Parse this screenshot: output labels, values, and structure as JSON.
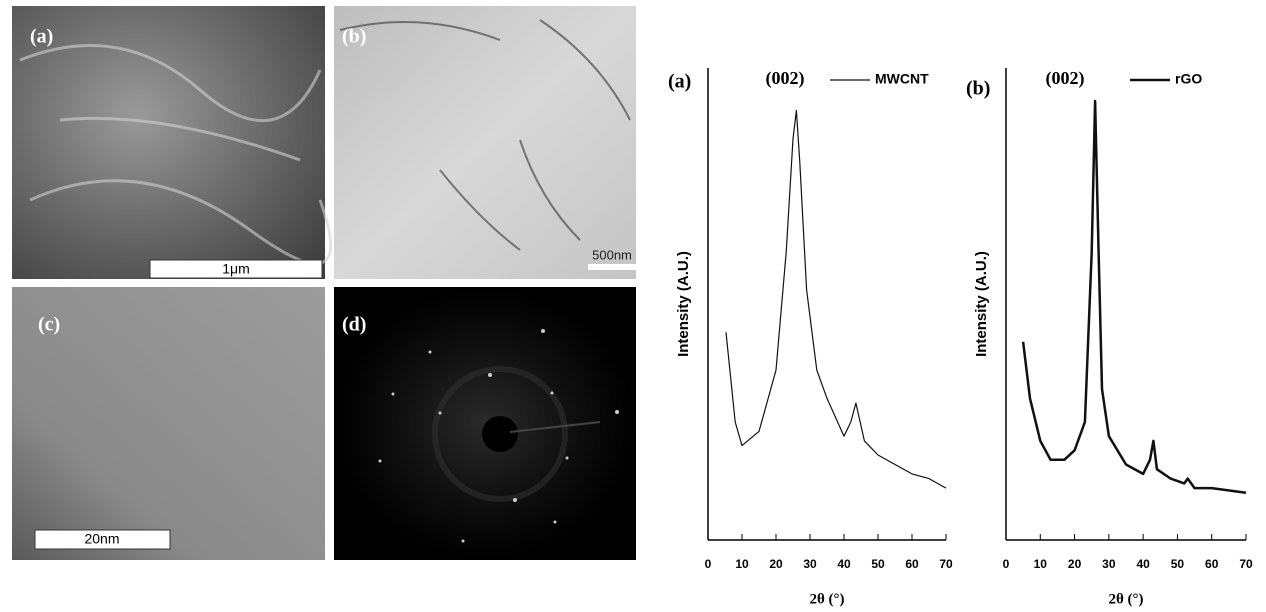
{
  "images": [
    {
      "label": "(a)",
      "scale_bar": "1μm"
    },
    {
      "label": "(b)",
      "scale_bar": "500nm"
    },
    {
      "label": "(c)",
      "scale_bar": "20nm"
    },
    {
      "label": "(d)"
    }
  ],
  "chart_data": [
    {
      "type": "line",
      "panel_label": "(a)",
      "annotation": "(002)",
      "xlabel": "2θ (°)",
      "ylabel": "Intensity (A.U.)",
      "xlim": [
        0,
        70
      ],
      "xticks": [
        0,
        10,
        20,
        30,
        40,
        50,
        60,
        70
      ],
      "ylim": [
        0,
        100
      ],
      "series": [
        {
          "name": "MWCNT",
          "color": "#111111",
          "x": [
            5.3,
            8,
            10,
            15,
            20,
            23,
            25,
            26,
            27,
            29,
            32,
            35,
            40,
            42,
            43.5,
            46,
            50,
            55,
            60,
            65,
            70
          ],
          "values": [
            44,
            25,
            20,
            23,
            36,
            61,
            85,
            91,
            80,
            53,
            36,
            30,
            22,
            25,
            29,
            21,
            18,
            16,
            14,
            13,
            11
          ]
        }
      ]
    },
    {
      "type": "line",
      "panel_label": "(b)",
      "annotation": "(002)",
      "xlabel": "2θ (°)",
      "ylabel": "Intensity (A.U.)",
      "xlim": [
        0,
        70
      ],
      "xticks": [
        0,
        10,
        20,
        30,
        40,
        50,
        60,
        70
      ],
      "ylim": [
        0,
        100
      ],
      "series": [
        {
          "name": "rGO",
          "color": "#111111",
          "x": [
            5,
            7,
            10,
            13,
            17,
            20,
            23,
            25,
            26,
            27,
            28,
            30,
            35,
            40,
            42,
            43,
            44,
            48,
            52,
            53,
            55,
            60,
            70
          ],
          "values": [
            42,
            30,
            21,
            17,
            17,
            19,
            25,
            61,
            93,
            61,
            32,
            22,
            16,
            14,
            17,
            21,
            15,
            13,
            12,
            13,
            11,
            11,
            10
          ]
        }
      ]
    }
  ]
}
